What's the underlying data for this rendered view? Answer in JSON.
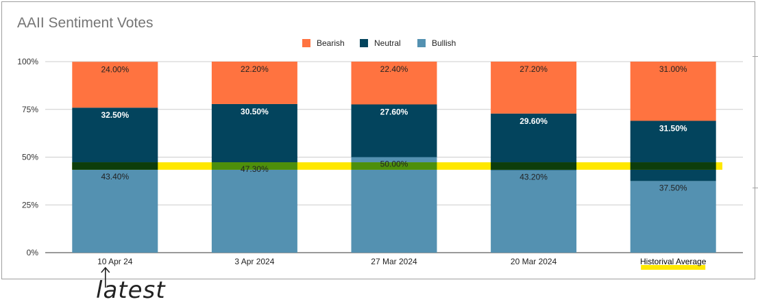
{
  "chart_data": {
    "type": "bar",
    "stacked": true,
    "title": "AAII Sentiment Votes",
    "categories": [
      "10 Apr 24",
      "3 Apr 2024",
      "27 Mar 2024",
      "20 Mar 2024",
      "Historival Average"
    ],
    "series": [
      {
        "name": "Bullish",
        "color": "#5491b1",
        "values": [
          43.4,
          47.3,
          50.0,
          43.2,
          37.5
        ],
        "labels": [
          "43.40%",
          "47.30%",
          "50.00%",
          "43.20%",
          "37.50%"
        ],
        "label_color": "#222222"
      },
      {
        "name": "Neutral",
        "color": "#03445d",
        "values": [
          32.5,
          30.5,
          27.6,
          29.6,
          31.5
        ],
        "labels": [
          "32.50%",
          "30.50%",
          "27.60%",
          "29.60%",
          "31.50%"
        ],
        "label_color": "#ffffff"
      },
      {
        "name": "Bearish",
        "color": "#ff7340",
        "values": [
          24.0,
          22.2,
          22.4,
          27.2,
          31.0
        ],
        "labels": [
          "24.00%",
          "22.20%",
          "22.40%",
          "27.20%",
          "31.00%"
        ],
        "label_color": "#222222"
      }
    ],
    "legend_order": [
      "Bearish",
      "Neutral",
      "Bullish"
    ],
    "legend_position": "top",
    "ylim": [
      0,
      100
    ],
    "yticks": [
      0,
      25,
      50,
      75,
      100
    ],
    "ytick_labels": [
      "0%",
      "25%",
      "50%",
      "75%",
      "100%"
    ],
    "grid": true,
    "highlight_band": {
      "y_from": 43.4,
      "y_to": 47.3,
      "color": "#ffe800",
      "darker": "#0d3d0b",
      "green": "#4d8f0b"
    },
    "annotations": {
      "handwritten": "latest",
      "underline_category": "Historival Average"
    }
  }
}
